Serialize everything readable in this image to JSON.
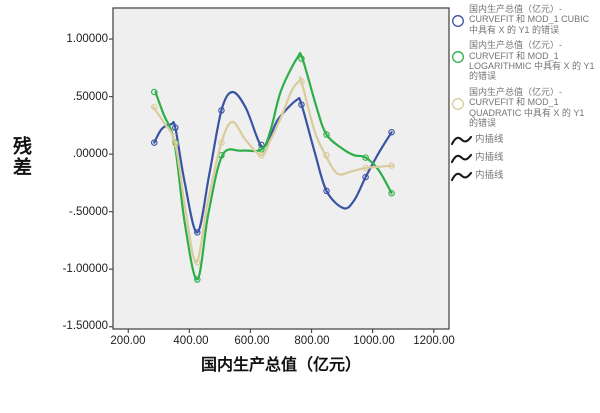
{
  "chart_data": {
    "type": "line",
    "title": "",
    "xlabel": "国内生产总值（亿元）",
    "ylabel": "残差",
    "grid": false,
    "legend_position": "right",
    "plot_background": "#EFEFEF",
    "frame_color": "#4A4A4A",
    "xlim": [
      150,
      1250
    ],
    "ylim": [
      -1.52,
      1.27
    ],
    "x_ticks": {
      "values": [
        200,
        400,
        600,
        800,
        1000,
        1200
      ],
      "labels": [
        "200.00",
        "400.00",
        "600.00",
        "800.00",
        "1000.00",
        "1200.00"
      ]
    },
    "y_ticks": {
      "values": [
        1.0,
        0.5,
        0.0,
        -0.5,
        -1.0,
        -1.5
      ],
      "labels": [
        "1.00000",
        ".50000",
        ".00000",
        "-.50000",
        "-1.00000",
        "-1.50000"
      ]
    },
    "marker_x": [
      285,
      354,
      426,
      505,
      636,
      767,
      849,
      977,
      1062
    ],
    "series": [
      {
        "name": "国内生产总值（亿元）- CURVEFIT 和 MOD_1 CUBIC 中具有 X 的 Y1 的错误",
        "color": "#3A53A4",
        "marker_values": [
          0.1,
          0.23,
          -0.68,
          0.38,
          0.08,
          0.43,
          -0.32,
          -0.2,
          0.19
        ],
        "curve": [
          [
            285,
            0.1
          ],
          [
            310,
            0.22
          ],
          [
            341,
            0.26
          ],
          [
            354,
            0.23
          ],
          [
            385,
            -0.25
          ],
          [
            426,
            -0.68
          ],
          [
            465,
            -0.18
          ],
          [
            505,
            0.38
          ],
          [
            541,
            0.54
          ],
          [
            585,
            0.4
          ],
          [
            633,
            0.08
          ],
          [
            660,
            0.12
          ],
          [
            690,
            0.3
          ],
          [
            751,
            0.47
          ],
          [
            767,
            0.43
          ],
          [
            810,
            0.02
          ],
          [
            849,
            -0.32
          ],
          [
            905,
            -0.47
          ],
          [
            940,
            -0.4
          ],
          [
            977,
            -0.2
          ],
          [
            1020,
            0.01
          ],
          [
            1062,
            0.19
          ]
        ]
      },
      {
        "name": "国内生产总值（亿元）- CURVEFIT 和 MOD_1 LOGARITHMIC 中具有 X 的 Y1 的错误",
        "color": "#2EAE49",
        "marker_values": [
          0.54,
          0.1,
          -1.09,
          -0.01,
          0.04,
          0.83,
          0.17,
          -0.03,
          -0.34
        ],
        "curve": [
          [
            289,
            0.54
          ],
          [
            315,
            0.35
          ],
          [
            351,
            0.1
          ],
          [
            385,
            -0.6
          ],
          [
            426,
            -1.09
          ],
          [
            462,
            -0.52
          ],
          [
            508,
            -0.01
          ],
          [
            570,
            0.03
          ],
          [
            636,
            0.04
          ],
          [
            665,
            0.2
          ],
          [
            700,
            0.55
          ],
          [
            754,
            0.84
          ],
          [
            770,
            0.83
          ],
          [
            815,
            0.42
          ],
          [
            849,
            0.17
          ],
          [
            905,
            0.04
          ],
          [
            940,
            -0.01
          ],
          [
            977,
            -0.03
          ],
          [
            1020,
            -0.14
          ],
          [
            1062,
            -0.34
          ]
        ]
      },
      {
        "name": "国内生产总值（亿元）- CURVEFIT 和 MOD_1 QUADRATIC 中具有 X 的 Y1 的错误",
        "color": "#D9CC9C",
        "marker_values": [
          0.41,
          0.09,
          -0.94,
          0.1,
          -0.01,
          0.63,
          -0.01,
          -0.12,
          -0.1
        ],
        "curve": [
          [
            282,
            0.41
          ],
          [
            315,
            0.28
          ],
          [
            354,
            0.09
          ],
          [
            388,
            -0.5
          ],
          [
            423,
            -0.94
          ],
          [
            460,
            -0.42
          ],
          [
            505,
            0.1
          ],
          [
            541,
            0.28
          ],
          [
            585,
            0.12
          ],
          [
            636,
            -0.01
          ],
          [
            665,
            0.12
          ],
          [
            700,
            0.32
          ],
          [
            735,
            0.55
          ],
          [
            761,
            0.64
          ],
          [
            767,
            0.63
          ],
          [
            810,
            0.2
          ],
          [
            846,
            -0.01
          ],
          [
            885,
            -0.17
          ],
          [
            930,
            -0.15
          ],
          [
            977,
            -0.12
          ],
          [
            1020,
            -0.11
          ],
          [
            1066,
            -0.1
          ]
        ]
      }
    ],
    "interpolation_lines": [
      "内插线",
      "内插线",
      "内插线"
    ]
  },
  "legend": {
    "entries": [
      {
        "label": "国内生产总值（亿元）- CURVEFIT 和 MOD_1 CUBIC 中具有 X 的 Y1 的错误",
        "marker": "open-circle",
        "color": "#3A53A4"
      },
      {
        "label": "国内生产总值（亿元）- CURVEFIT 和 MOD_1 LOGARITHMIC 中具有 X 的 Y1 的错误",
        "marker": "open-circle",
        "color": "#2EAE49"
      },
      {
        "label": "国内生产总值（亿元）- CURVEFIT 和 MOD_1 QUADRATIC 中具有 X 的 Y1 的错误",
        "marker": "open-circle",
        "color": "#D9CC9C"
      }
    ],
    "interp": [
      "内插线",
      "内插线",
      "内插线"
    ],
    "interp_icon_color": "#1a1a1a"
  }
}
